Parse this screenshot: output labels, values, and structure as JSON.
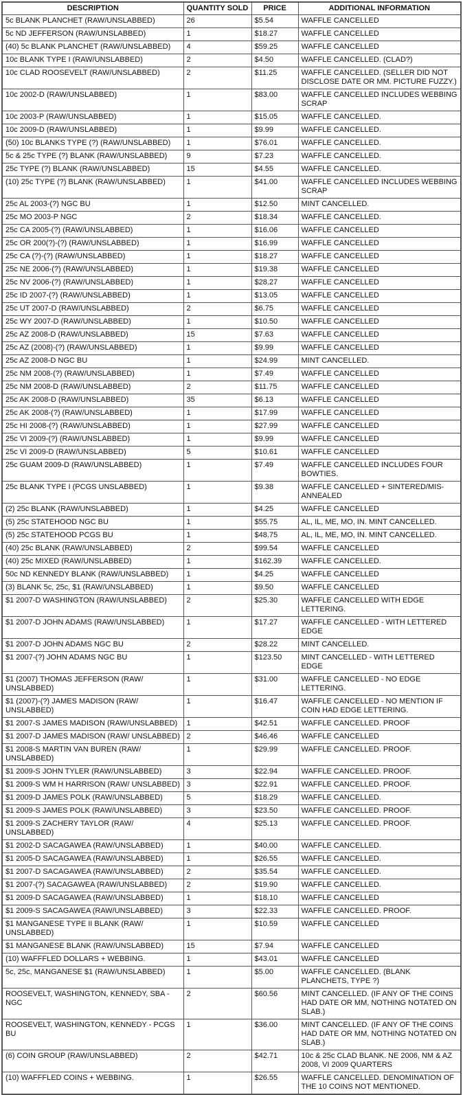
{
  "table": {
    "headers": [
      "DESCRIPTION",
      "QUANTITY SOLD",
      "PRICE",
      "ADDITIONAL INFORMATION"
    ],
    "rows": [
      [
        "5c BLANK PLANCHET (RAW/UNSLABBED)",
        "26",
        "$5.54",
        "WAFFLE CANCELLED"
      ],
      [
        "5c ND JEFFERSON (RAW/UNSLABBED)",
        "1",
        "$18.27",
        "WAFFLE CANCELLED"
      ],
      [
        "(40) 5c BLANK PLANCHET (RAW/UNSLABBED)",
        "4",
        "$59.25",
        "WAFFLE CANCELLED"
      ],
      [
        "10c BLANK TYPE I (RAW/UNSLABBED)",
        "2",
        "$4.50",
        "WAFFLE CANCELLED. (CLAD?)"
      ],
      [
        "10c CLAD ROOSEVELT (RAW/UNSLABBED)",
        "2",
        "$11.25",
        "WAFFLE CANCELLED.  (SELLER DID NOT DISCLOSE DATE OR MM. PICTURE FUZZY.)"
      ],
      [
        "10c 2002-D (RAW/UNSLABBED)",
        "1",
        "$83.00",
        "WAFFLE CANCELLED INCLUDES WEBBING SCRAP"
      ],
      [
        "10c 2003-P (RAW/UNSLABBED)",
        "1",
        "$15.05",
        "WAFFLE CANCELLED."
      ],
      [
        "10c 2009-D (RAW/UNSLABBED)",
        "1",
        "$9.99",
        "WAFFLE CANCELLED."
      ],
      [
        "(50) 10c BLANKS TYPE (?) (RAW/UNSLABBED)",
        "1",
        "$76.01",
        "WAFFLE CANCELLED."
      ],
      [
        "5c & 25c TYPE (?) BLANK (RAW/UNSLABBED)",
        "9",
        "$7.23",
        "WAFFLE CANCELLED."
      ],
      [
        "25c TYPE (?) BLANK (RAW/UNSLABBED)",
        "15",
        "$4.55",
        "WAFFLE CANCELLED."
      ],
      [
        "(10) 25c TYPE (?) BLANK (RAW/UNSLABBED)",
        "1",
        "$41.00",
        "WAFFLE CANCELLED INCLUDES WEBBING SCRAP"
      ],
      [
        "25c AL 2003-(?) NGC BU",
        "1",
        "$12.50",
        "MINT CANCELLED."
      ],
      [
        "25c MO 2003-P NGC",
        "2",
        "$18.34",
        "WAFFLE CANCELLED."
      ],
      [
        "25c CA 2005-(?) (RAW/UNSLABBED)",
        "1",
        "$16.06",
        "WAFFLE CANCELLED"
      ],
      [
        "25c OR 200(?)-(?) (RAW/UNSLABBED)",
        "1",
        "$16.99",
        "WAFFLE CANCELLED"
      ],
      [
        "25c CA (?)-(?) (RAW/UNSLABBED)",
        "1",
        "$18.27",
        "WAFFLE CANCELLED"
      ],
      [
        "25c NE 2006-(?) (RAW/UNSLABBED)",
        "1",
        "$19.38",
        "WAFFLE CANCELLED"
      ],
      [
        "25c NV 2006-(?) (RAW/UNSLABBED)",
        "1",
        "$28.27",
        "WAFFLE CANCELLED"
      ],
      [
        "25c ID 2007-(?) (RAW/UNSLABBED)",
        "1",
        "$13.05",
        "WAFFLE CANCELLED"
      ],
      [
        "25c UT 2007-D (RAW/UNSLABBED)",
        "2",
        "$6.75",
        "WAFFLE CANCELLED"
      ],
      [
        "25c WY 2007-D (RAW/UNSLABBED)",
        "1",
        "$10.50",
        "WAFFLE CANCELLED"
      ],
      [
        "25c AZ 2008-D (RAW/UNSLABBED)",
        "15",
        "$7.63",
        "WAFFLE CANCELLED"
      ],
      [
        "25c AZ (2008)-(?) (RAW/UNSLABBED)",
        "1",
        "$9.99",
        "WAFFLE CANCELLED"
      ],
      [
        "25c AZ 2008-D NGC BU",
        "1",
        "$24.99",
        "MINT CANCELLED."
      ],
      [
        "25c NM 2008-(?) (RAW/UNSLABBED)",
        "1",
        "$7.49",
        "WAFFLE CANCELLED"
      ],
      [
        "25c NM 2008-D (RAW/UNSLABBED)",
        "2",
        "$11.75",
        "WAFFLE CANCELLED"
      ],
      [
        "25c AK 2008-D (RAW/UNSLABBED)",
        "35",
        "$6.13",
        "WAFFLE CANCELLED"
      ],
      [
        "25c AK 2008-(?) (RAW/UNSLABBED)",
        "1",
        "$17.99",
        "WAFFLE CANCELLED"
      ],
      [
        "25c HI 2008-(?) (RAW/UNSLABBED)",
        "1",
        "$27.99",
        "WAFFLE CANCELLED"
      ],
      [
        "25c VI 2009-(?) (RAW/UNSLABBED)",
        "1",
        "$9.99",
        "WAFFLE CANCELLED"
      ],
      [
        "25c VI 2009-D (RAW/UNSLABBED)",
        "5",
        "$10.61",
        "WAFFLE CANCELLED"
      ],
      [
        "25c GUAM 2009-D (RAW/UNSLABBED)",
        "1",
        "$7.49",
        "WAFFLE CANCELLED INCLUDES FOUR BOWTIES."
      ],
      [
        "25c BLANK TYPE I (PCGS UNSLABBED)",
        "1",
        "$9.38",
        "WAFFLE CANCELLED + SINTERED/MIS-ANNEALED"
      ],
      [
        "(2) 25c BLANK (RAW/UNSLABBED)",
        "1",
        "$4.25",
        "WAFFLE CANCELLED"
      ],
      [
        "(5) 25c STATEHOOD NGC BU",
        "1",
        "$55.75",
        "AL, IL, ME, MO, IN. MINT CANCELLED."
      ],
      [
        "(5) 25c STATEHOOD PCGS BU",
        "1",
        "$48.75",
        "AL, IL, ME, MO, IN. MINT CANCELLED."
      ],
      [
        "(40) 25c BLANK (RAW/UNSLABBED)",
        "2",
        "$99.54",
        "WAFFLE CANCELLED"
      ],
      [
        "(40) 25c MIXED (RAW/UNSLABBED)",
        "1",
        "$162.39",
        "WAFFLE CANCELLED."
      ],
      [
        "50c ND KENNEDY BLANK (RAW/UNSLABBED)",
        "1",
        "$4.25",
        "WAFFLE CANCELLED"
      ],
      [
        "(3) BLANK 5c, 25c, $1 (RAW/UNSLABBED)",
        "1",
        "$9.50",
        "WAFFLE CANCELLED"
      ],
      [
        "$1 2007-D WASHINGTON  (RAW/UNSLABBED)",
        "2",
        "$25.30",
        "WAFFLE CANCELLED WITH EDGE LETTERING."
      ],
      [
        "$1 2007-D JOHN ADAMS (RAW/UNSLABBED)",
        "1",
        "$17.27",
        "WAFFLE CANCELLED - WITH LETTERED EDGE"
      ],
      [
        "$1 2007-D JOHN ADAMS NGC BU",
        "2",
        "$28.22",
        "MINT CANCELLED."
      ],
      [
        "$1 2007-(?) JOHN ADAMS NGC BU",
        "1",
        "$123.50",
        "MINT CANCELLED - WITH LETTERED EDGE"
      ],
      [
        "$1 (2007) THOMAS JEFFERSON (RAW/ UNSLABBED)",
        "1",
        "$31.00",
        "WAFFLE CANCELLED - NO EDGE LETTERING."
      ],
      [
        "$1 (2007)-(?) JAMES MADISON (RAW/ UNSLABBED)",
        "1",
        "$16.47",
        "WAFFLE CANCELLED - NO MENTION IF COIN HAD EDGE LETTERING."
      ],
      [
        "$1 2007-S JAMES MADISON (RAW/UNSLABBED)",
        "1",
        "$42.51",
        "WAFFLE CANCELLED. PROOF"
      ],
      [
        "$1 2007-D JAMES MADISON (RAW/ UNSLABBED)",
        "2",
        "$46.46",
        "WAFFLE CANCELLED"
      ],
      [
        "$1 2008-S MARTIN VAN BUREN  (RAW/ UNSLABBED)",
        "1",
        "$29.99",
        "WAFFLE CANCELLED. PROOF."
      ],
      [
        "$1 2009-S JOHN TYLER (RAW/UNSLABBED)",
        "3",
        "$22.94",
        "WAFFLE CANCELLED. PROOF."
      ],
      [
        "$1 2009-S WM H HARRISON (RAW/ UNSLABBED)",
        "3",
        "$22.91",
        "WAFFLE CANCELLED. PROOF."
      ],
      [
        "$1 2009-D JAMES POLK (RAW/UNSLABBED)",
        "5",
        "$18.29",
        "WAFFLE CANCELLED."
      ],
      [
        "$1 2009-S JAMES POLK (RAW/UNSLABBED)",
        "3",
        "$23.50",
        "WAFFLE CANCELLED. PROOF."
      ],
      [
        "$1 2009-S ZACHERY TAYLOR (RAW/ UNSLABBED)",
        "4",
        "$25.13",
        "WAFFLE CANCELLED. PROOF."
      ],
      [
        "$1 2002-D SACAGAWEA (RAW/UNSLABBED)",
        "1",
        "$40.00",
        "WAFFLE CANCELLED."
      ],
      [
        "$1 2005-D SACAGAWEA (RAW/UNSLABBED)",
        "1",
        "$26.55",
        "WAFFLE CANCELLED."
      ],
      [
        "$1 2007-D SACAGAWEA (RAW/UNSLABBED)",
        "2",
        "$35.54",
        "WAFFLE CANCELLED."
      ],
      [
        "$1 2007-(?) SACAGAWEA (RAW/UNSLABBED)",
        "2",
        "$19.90",
        "WAFFLE CANCELLED."
      ],
      [
        "$1 2009-D SACAGAWEA (RAW/UNSLABBED)",
        "1",
        "$18.10",
        "WAFFLE CANCELLED"
      ],
      [
        "$1 2009-S SACAGAWEA (RAW/UNSLABBED)",
        "3",
        "$22.33",
        "WAFFLE CANCELLED. PROOF."
      ],
      [
        "$1 MANGANESE TYPE II BLANK (RAW/ UNSLABBED)",
        "1",
        "$10.59",
        "WAFFLE CANCELLED"
      ],
      [
        "$1 MANGANESE BLANK (RAW/UNSLABBED)",
        "15",
        "$7.94",
        "WAFFLE CANCELLED"
      ],
      [
        "(10) WAFFFLED DOLLARS + WEBBING.",
        "1",
        "$43.01",
        "WAFFLE CANCELLED"
      ],
      [
        "5c, 25c, MANGANESE $1 (RAW/UNSLABBED)",
        "1",
        "$5.00",
        "WAFFLE CANCELLED. (BLANK PLANCHETS, TYPE ?)"
      ],
      [
        "ROOSEVELT, WASHINGTON, KENNEDY, SBA - NGC",
        "2",
        "$60.56",
        "MINT CANCELLED. (IF ANY OF THE COINS HAD DATE OR MM, NOTHING NOTATED ON SLAB.)"
      ],
      [
        "ROOSEVELT, WASHINGTON, KENNEDY - PCGS BU",
        "1",
        "$36.00",
        "MINT CANCELLED. (IF ANY OF THE COINS HAD DATE OR MM, NOTHING NOTATED ON SLAB.)"
      ],
      [
        "(6) COIN GROUP (RAW/UNSLABBED)",
        "2",
        "$42.71",
        "10c & 25c CLAD BLANK. NE 2006, NM & AZ 2008, VI 2009 QUARTERS"
      ],
      [
        "(10) WAFFFLED COINS + WEBBING.",
        "1",
        "$26.55",
        "WAFFLE CANCELLED. DENOMINATION OF THE 10 COINS NOT MENTIONED."
      ]
    ]
  }
}
